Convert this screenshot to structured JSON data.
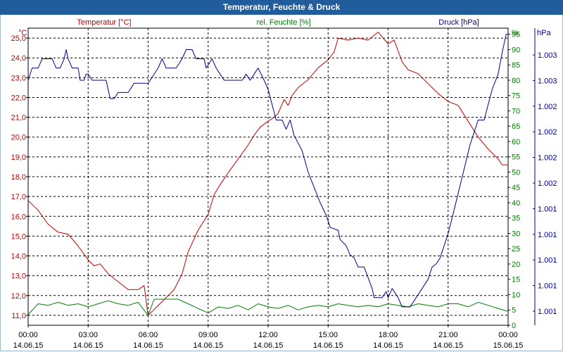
{
  "window": {
    "title": "Temperatur, Feuchte & Druck"
  },
  "colors": {
    "temperature": "#c00000",
    "humidity": "#008000",
    "pressure": "#00008b",
    "grid": "#000000",
    "title_bg": "#215d9c"
  },
  "chart_data": {
    "type": "line",
    "title": "Temperatur, Feuchte & Druck",
    "series_labels": {
      "temperature": "Temperatur [°C]",
      "humidity": "rel. Feuchte [%]",
      "pressure": "Druck [hPa]"
    },
    "axes": {
      "left": {
        "unit": "°C",
        "range": [
          10.5,
          25.5
        ],
        "ticks": [
          "25,0",
          "24,0",
          "23,0",
          "22,0",
          "21,0",
          "20,0",
          "19,0",
          "18,0",
          "17,0",
          "16,0",
          "15,0",
          "14,0",
          "13,0",
          "12,0",
          "11,0"
        ]
      },
      "right1": {
        "unit": "%",
        "range": [
          0,
          97
        ],
        "ticks": [
          "95",
          "90",
          "85",
          "80",
          "75",
          "70",
          "65",
          "60",
          "55",
          "50",
          "45",
          "40",
          "35",
          "30",
          "25",
          "20",
          "15",
          "10",
          "5",
          "0"
        ]
      },
      "right2": {
        "unit": "hPa",
        "ticks": [
          "1.003",
          "1.003",
          "1.002",
          "1.002",
          "1.002",
          "1.002",
          "1.001",
          "1.001",
          "1.001",
          "1.001",
          "1.001"
        ]
      },
      "x": {
        "times": [
          "00:00",
          "03:00",
          "06:00",
          "09:00",
          "12:00",
          "15:00",
          "18:00",
          "21:00",
          "00:00"
        ],
        "dates": [
          "14.06.15",
          "14.06.15",
          "14.06.15",
          "14.06.15",
          "14.06.15",
          "14.06.15",
          "14.06.15",
          "14.06.15",
          "15.06.15"
        ],
        "range_hours": [
          0,
          24
        ]
      }
    },
    "series": [
      {
        "name": "temperature",
        "axis": "left",
        "points": [
          [
            0,
            16.8
          ],
          [
            0.5,
            16.3
          ],
          [
            1,
            15.6
          ],
          [
            1.5,
            15.2
          ],
          [
            2,
            15.1
          ],
          [
            2.5,
            14.5
          ],
          [
            3,
            13.8
          ],
          [
            3.3,
            13.5
          ],
          [
            3.6,
            13.6
          ],
          [
            4,
            13.1
          ],
          [
            4.5,
            12.7
          ],
          [
            5,
            12.3
          ],
          [
            5.5,
            12.3
          ],
          [
            5.8,
            12.5
          ],
          [
            6,
            11.0
          ],
          [
            6.2,
            11.2
          ],
          [
            6.6,
            11.6
          ],
          [
            7,
            12.0
          ],
          [
            7.3,
            12.3
          ],
          [
            7.7,
            13.1
          ],
          [
            8,
            14.2
          ],
          [
            8.5,
            15.3
          ],
          [
            9,
            16.1
          ],
          [
            9.3,
            17.1
          ],
          [
            9.6,
            17.6
          ],
          [
            10,
            18.2
          ],
          [
            10.5,
            18.9
          ],
          [
            11,
            19.6
          ],
          [
            11.3,
            20.1
          ],
          [
            11.6,
            20.5
          ],
          [
            12,
            20.8
          ],
          [
            12.3,
            21.0
          ],
          [
            12.5,
            21.2
          ],
          [
            12.8,
            21.9
          ],
          [
            13,
            21.6
          ],
          [
            13.2,
            22.1
          ],
          [
            13.5,
            22.5
          ],
          [
            14,
            22.9
          ],
          [
            14.5,
            23.5
          ],
          [
            15,
            23.9
          ],
          [
            15.3,
            24.3
          ],
          [
            15.5,
            25.0
          ],
          [
            16,
            24.9
          ],
          [
            16.5,
            25.0
          ],
          [
            17,
            24.9
          ],
          [
            17.5,
            25.3
          ],
          [
            18,
            24.7
          ],
          [
            18.3,
            24.9
          ],
          [
            18.7,
            23.8
          ],
          [
            19,
            23.4
          ],
          [
            19.5,
            23.2
          ],
          [
            20,
            22.7
          ],
          [
            20.5,
            22.2
          ],
          [
            21,
            21.8
          ],
          [
            21.5,
            21.6
          ],
          [
            22,
            20.8
          ],
          [
            22.5,
            20.0
          ],
          [
            23,
            19.4
          ],
          [
            23.5,
            18.9
          ],
          [
            23.7,
            18.6
          ],
          [
            24,
            18.6
          ]
        ]
      },
      {
        "name": "humidity",
        "axis": "right1",
        "points": [
          [
            0,
            3.5
          ],
          [
            0.5,
            7
          ],
          [
            1,
            6.5
          ],
          [
            1.5,
            7.5
          ],
          [
            2,
            6.5
          ],
          [
            2.5,
            7
          ],
          [
            3,
            6
          ],
          [
            3.5,
            7
          ],
          [
            4,
            8
          ],
          [
            4.5,
            7
          ],
          [
            5,
            6.5
          ],
          [
            5.5,
            7.5
          ],
          [
            6,
            3.2
          ],
          [
            6.3,
            8.5
          ],
          [
            7,
            8.5
          ],
          [
            7.5,
            8.5
          ],
          [
            8,
            7
          ],
          [
            8.5,
            5.5
          ],
          [
            9,
            4
          ],
          [
            9.5,
            6
          ],
          [
            10,
            5.5
          ],
          [
            10.5,
            6.5
          ],
          [
            11,
            5
          ],
          [
            11.5,
            7
          ],
          [
            12,
            6
          ],
          [
            12.5,
            5.5
          ],
          [
            13,
            6.5
          ],
          [
            13.5,
            5
          ],
          [
            14,
            6
          ],
          [
            14.5,
            6.5
          ],
          [
            15,
            6
          ],
          [
            15.5,
            7
          ],
          [
            16,
            6.5
          ],
          [
            16.5,
            6
          ],
          [
            17,
            6.5
          ],
          [
            17.5,
            6
          ],
          [
            18,
            7
          ],
          [
            18.5,
            6.5
          ],
          [
            19,
            6
          ],
          [
            19.5,
            7
          ],
          [
            20,
            6.5
          ],
          [
            20.5,
            6
          ],
          [
            21,
            7
          ],
          [
            21.5,
            7
          ],
          [
            22,
            6
          ],
          [
            22.5,
            7.5
          ],
          [
            23,
            6.5
          ],
          [
            23.5,
            5.5
          ],
          [
            24,
            4.5
          ]
        ]
      },
      {
        "name": "pressure",
        "axis": "right1",
        "points": [
          [
            0,
            80
          ],
          [
            0.2,
            84
          ],
          [
            0.5,
            84
          ],
          [
            0.7,
            87
          ],
          [
            1.2,
            87
          ],
          [
            1.4,
            84
          ],
          [
            1.6,
            84
          ],
          [
            1.8,
            87
          ],
          [
            1.9,
            90
          ],
          [
            2.0,
            87
          ],
          [
            2.2,
            84
          ],
          [
            2.5,
            84
          ],
          [
            2.6,
            80
          ],
          [
            2.8,
            80
          ],
          [
            2.9,
            82
          ],
          [
            3.0,
            82
          ],
          [
            3.2,
            80
          ],
          [
            3.9,
            80
          ],
          [
            4.0,
            77
          ],
          [
            4.1,
            74
          ],
          [
            4.3,
            74
          ],
          [
            4.5,
            76
          ],
          [
            5.0,
            76
          ],
          [
            5.3,
            79
          ],
          [
            6.0,
            79
          ],
          [
            6.2,
            81
          ],
          [
            6.5,
            84
          ],
          [
            6.7,
            87
          ],
          [
            6.9,
            84
          ],
          [
            7.4,
            84
          ],
          [
            7.7,
            87
          ],
          [
            7.9,
            90
          ],
          [
            8.2,
            90
          ],
          [
            8.4,
            87
          ],
          [
            8.8,
            87
          ],
          [
            8.9,
            84
          ],
          [
            9.2,
            87
          ],
          [
            9.4,
            84
          ],
          [
            9.6,
            82
          ],
          [
            9.8,
            80
          ],
          [
            10.7,
            80
          ],
          [
            10.9,
            82
          ],
          [
            11.1,
            80
          ],
          [
            11.3,
            82
          ],
          [
            11.5,
            84
          ],
          [
            11.8,
            80
          ],
          [
            12.0,
            77
          ],
          [
            12.2,
            72
          ],
          [
            12.4,
            67
          ],
          [
            12.7,
            67
          ],
          [
            12.9,
            64
          ],
          [
            13.1,
            67
          ],
          [
            13.3,
            62
          ],
          [
            13.7,
            57
          ],
          [
            14.0,
            50
          ],
          [
            14.3,
            45
          ],
          [
            14.6,
            40
          ],
          [
            14.9,
            36
          ],
          [
            15.1,
            32
          ],
          [
            15.5,
            31
          ],
          [
            15.6,
            28
          ],
          [
            15.9,
            26
          ],
          [
            16.1,
            23
          ],
          [
            16.3,
            22
          ],
          [
            16.5,
            19
          ],
          [
            16.8,
            19
          ],
          [
            17.2,
            12
          ],
          [
            17.3,
            9
          ],
          [
            17.7,
            9
          ],
          [
            17.9,
            11
          ],
          [
            18.0,
            9
          ],
          [
            18.2,
            12
          ],
          [
            18.5,
            9
          ],
          [
            18.7,
            6
          ],
          [
            19.1,
            6
          ],
          [
            19.4,
            9
          ],
          [
            19.7,
            12
          ],
          [
            20.0,
            15
          ],
          [
            20.2,
            19
          ],
          [
            20.4,
            20
          ],
          [
            20.6,
            22
          ],
          [
            20.8,
            26
          ],
          [
            21.0,
            30
          ],
          [
            21.2,
            35
          ],
          [
            21.5,
            43
          ],
          [
            21.8,
            51
          ],
          [
            22.1,
            59
          ],
          [
            22.3,
            63
          ],
          [
            22.5,
            67
          ],
          [
            22.8,
            67
          ],
          [
            23.0,
            72
          ],
          [
            23.2,
            77
          ],
          [
            23.5,
            82
          ],
          [
            23.7,
            89
          ],
          [
            23.9,
            95
          ],
          [
            24,
            95
          ]
        ]
      }
    ]
  }
}
